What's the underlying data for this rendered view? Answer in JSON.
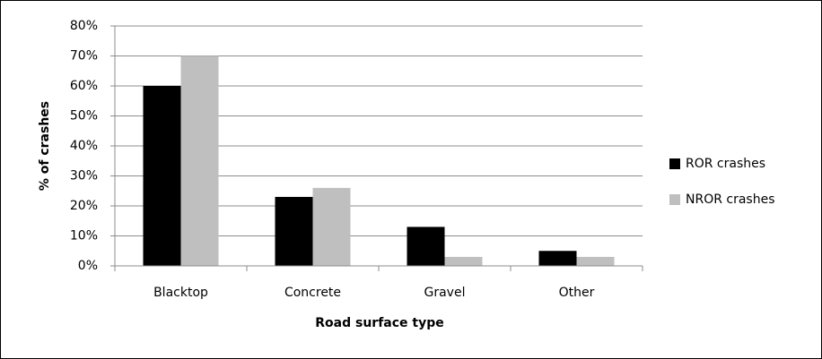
{
  "chart_data": {
    "type": "bar",
    "x_label": "Road surface type",
    "y_label": "% of crashes",
    "categories": [
      "Blacktop",
      "Concrete",
      "Gravel",
      "Other"
    ],
    "series": [
      {
        "name": "ROR crashes",
        "color": "#000000",
        "values": [
          60,
          23,
          13,
          5
        ]
      },
      {
        "name": "NROR crashes",
        "color": "#bfbfbf",
        "values": [
          70,
          26,
          3,
          3
        ]
      }
    ],
    "ylim": [
      0,
      80
    ],
    "yticks": [
      {
        "value": 0,
        "label": "0%"
      },
      {
        "value": 10,
        "label": "10%"
      },
      {
        "value": 20,
        "label": "20%"
      },
      {
        "value": 30,
        "label": "30%"
      },
      {
        "value": 40,
        "label": "40%"
      },
      {
        "value": 50,
        "label": "50%"
      },
      {
        "value": 60,
        "label": "60%"
      },
      {
        "value": 70,
        "label": "70%"
      },
      {
        "value": 80,
        "label": "80%"
      }
    ],
    "grid": true,
    "legend": "right"
  }
}
